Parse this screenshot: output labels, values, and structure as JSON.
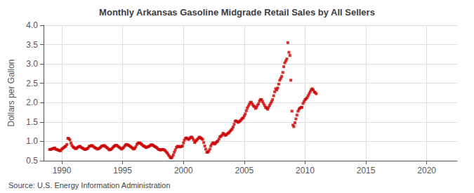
{
  "chart_data": {
    "type": "scatter",
    "title": "Monthly Arkansas Gasoline Midgrade Retail Sales by All Sellers",
    "ylabel": "Dollars per Gallon",
    "annotations": [
      "Source: U.S. Energy Information Administration"
    ],
    "color": "#cc0000",
    "marker": "square",
    "grid": true,
    "xlim": [
      1988.5,
      2022.5
    ],
    "ylim": [
      0.5,
      4.0
    ],
    "xticks": [
      1990,
      1995,
      2000,
      2005,
      2010,
      2015,
      2020
    ],
    "yticks": [
      0.5,
      {
        "value": 1.0,
        "label": "1.0"
      },
      1.5,
      {
        "value": 2.0,
        "label": "2.0"
      },
      2.5,
      {
        "value": 3.0,
        "label": "3.0"
      },
      3.5,
      {
        "value": 4.0,
        "label": "4.0"
      }
    ],
    "x": [
      1989.0,
      1989.08,
      1989.17,
      1989.25,
      1989.33,
      1989.42,
      1989.5,
      1989.58,
      1989.67,
      1989.75,
      1989.83,
      1989.92,
      1990.0,
      1990.08,
      1990.17,
      1990.25,
      1990.33,
      1990.42,
      1990.5,
      1990.58,
      1990.67,
      1990.75,
      1990.83,
      1990.92,
      1991.0,
      1991.08,
      1991.17,
      1991.25,
      1991.33,
      1991.42,
      1991.5,
      1991.58,
      1991.67,
      1991.75,
      1991.83,
      1991.92,
      1992.0,
      1992.08,
      1992.17,
      1992.25,
      1992.33,
      1992.42,
      1992.5,
      1992.58,
      1992.67,
      1992.75,
      1992.83,
      1992.92,
      1993.0,
      1993.08,
      1993.17,
      1993.25,
      1993.33,
      1993.42,
      1993.5,
      1993.58,
      1993.67,
      1993.75,
      1993.83,
      1993.92,
      1994.0,
      1994.08,
      1994.17,
      1994.25,
      1994.33,
      1994.42,
      1994.5,
      1994.58,
      1994.67,
      1994.75,
      1994.83,
      1994.92,
      1995.0,
      1995.08,
      1995.17,
      1995.25,
      1995.33,
      1995.42,
      1995.5,
      1995.58,
      1995.67,
      1995.75,
      1995.83,
      1995.92,
      1996.0,
      1996.08,
      1996.17,
      1996.25,
      1996.33,
      1996.42,
      1996.5,
      1996.58,
      1996.67,
      1996.75,
      1996.83,
      1996.92,
      1997.0,
      1997.08,
      1997.17,
      1997.25,
      1997.33,
      1997.42,
      1997.5,
      1997.58,
      1997.67,
      1997.75,
      1997.83,
      1997.92,
      1998.0,
      1998.08,
      1998.17,
      1998.25,
      1998.33,
      1998.42,
      1998.5,
      1998.58,
      1998.67,
      1998.75,
      1998.83,
      1998.92,
      1999.0,
      1999.08,
      1999.17,
      1999.25,
      1999.33,
      1999.42,
      1999.5,
      1999.58,
      1999.67,
      1999.75,
      1999.83,
      1999.92,
      2000.0,
      2000.08,
      2000.17,
      2000.25,
      2000.33,
      2000.42,
      2000.5,
      2000.58,
      2000.67,
      2000.75,
      2000.83,
      2000.92,
      2001.0,
      2001.08,
      2001.17,
      2001.25,
      2001.33,
      2001.42,
      2001.5,
      2001.58,
      2001.67,
      2001.75,
      2001.83,
      2001.92,
      2002.0,
      2002.08,
      2002.17,
      2002.25,
      2002.33,
      2002.42,
      2002.5,
      2002.58,
      2002.67,
      2002.75,
      2002.83,
      2002.92,
      2003.0,
      2003.08,
      2003.17,
      2003.25,
      2003.33,
      2003.42,
      2003.5,
      2003.58,
      2003.67,
      2003.75,
      2003.83,
      2003.92,
      2004.0,
      2004.08,
      2004.17,
      2004.25,
      2004.33,
      2004.42,
      2004.5,
      2004.58,
      2004.67,
      2004.75,
      2004.83,
      2004.92,
      2005.0,
      2005.08,
      2005.17,
      2005.25,
      2005.33,
      2005.42,
      2005.5,
      2005.58,
      2005.67,
      2005.75,
      2005.83,
      2005.92,
      2006.0,
      2006.08,
      2006.17,
      2006.25,
      2006.33,
      2006.42,
      2006.5,
      2006.58,
      2006.67,
      2006.75,
      2006.83,
      2006.92,
      2007.0,
      2007.08,
      2007.17,
      2007.25,
      2007.33,
      2007.42,
      2007.5,
      2007.58,
      2007.67,
      2007.75,
      2007.83,
      2007.92,
      2008.0,
      2008.08,
      2008.17,
      2008.25,
      2008.33,
      2008.42,
      2008.5,
      2008.58,
      2008.67,
      2008.75,
      2008.83,
      2008.92,
      2009.0,
      2009.08,
      2009.17,
      2009.25,
      2009.33,
      2009.42,
      2009.5,
      2009.58,
      2009.67,
      2009.75,
      2009.83,
      2009.92,
      2010.0,
      2010.08,
      2010.17,
      2010.25,
      2010.33,
      2010.42,
      2010.5,
      2010.58,
      2010.67,
      2010.75,
      2010.83,
      2010.92
    ],
    "values": [
      0.79,
      0.79,
      0.8,
      0.81,
      0.82,
      0.83,
      0.8,
      0.79,
      0.78,
      0.77,
      0.76,
      0.76,
      0.8,
      0.82,
      0.84,
      0.86,
      0.88,
      0.92,
      1.08,
      1.07,
      1.04,
      0.96,
      0.9,
      0.86,
      0.84,
      0.82,
      0.81,
      0.83,
      0.85,
      0.87,
      0.87,
      0.85,
      0.83,
      0.82,
      0.8,
      0.79,
      0.8,
      0.81,
      0.83,
      0.87,
      0.88,
      0.89,
      0.89,
      0.87,
      0.85,
      0.83,
      0.82,
      0.8,
      0.81,
      0.82,
      0.84,
      0.87,
      0.88,
      0.89,
      0.89,
      0.87,
      0.85,
      0.83,
      0.8,
      0.78,
      0.79,
      0.8,
      0.83,
      0.86,
      0.88,
      0.9,
      0.9,
      0.88,
      0.86,
      0.84,
      0.82,
      0.8,
      0.82,
      0.84,
      0.88,
      0.91,
      0.92,
      0.91,
      0.9,
      0.88,
      0.86,
      0.84,
      0.82,
      0.8,
      0.82,
      0.86,
      0.92,
      0.95,
      0.96,
      0.96,
      0.94,
      0.92,
      0.89,
      0.88,
      0.86,
      0.84,
      0.85,
      0.86,
      0.87,
      0.89,
      0.91,
      0.91,
      0.9,
      0.88,
      0.86,
      0.85,
      0.83,
      0.8,
      0.79,
      0.78,
      0.78,
      0.79,
      0.79,
      0.78,
      0.76,
      0.73,
      0.7,
      0.66,
      0.62,
      0.58,
      0.57,
      0.6,
      0.65,
      0.72,
      0.78,
      0.84,
      0.87,
      0.87,
      0.86,
      0.86,
      0.87,
      0.88,
      0.96,
      1.03,
      1.08,
      1.09,
      1.07,
      1.05,
      1.07,
      1.1,
      1.11,
      1.09,
      1.04,
      0.97,
      1.0,
      1.03,
      1.06,
      1.09,
      1.11,
      1.09,
      1.07,
      1.05,
      0.97,
      0.88,
      0.8,
      0.72,
      0.72,
      0.75,
      0.8,
      0.88,
      0.93,
      0.96,
      0.96,
      0.93,
      0.96,
      0.99,
      1.01,
      1.06,
      1.12,
      1.13,
      1.16,
      1.21,
      1.19,
      1.16,
      1.16,
      1.19,
      1.21,
      1.23,
      1.26,
      1.29,
      1.32,
      1.37,
      1.44,
      1.52,
      1.53,
      1.51,
      1.49,
      1.51,
      1.53,
      1.56,
      1.59,
      1.61,
      1.66,
      1.71,
      1.79,
      1.86,
      1.91,
      1.96,
      2.01,
      2.01,
      1.96,
      1.92,
      1.9,
      1.85,
      1.88,
      1.93,
      1.97,
      2.04,
      2.08,
      2.08,
      2.03,
      1.98,
      1.93,
      1.88,
      1.86,
      1.83,
      1.88,
      1.93,
      1.98,
      2.03,
      2.08,
      2.18,
      2.28,
      2.36,
      2.33,
      2.38,
      2.48,
      2.58,
      2.63,
      2.68,
      2.78,
      2.93,
      3.03,
      3.08,
      3.13,
      3.55,
      3.3,
      3.22,
      2.58,
      1.78,
      1.42,
      1.38,
      1.48,
      1.58,
      1.68,
      1.78,
      1.83,
      1.86,
      1.88,
      1.88,
      1.98,
      2.03,
      2.08,
      2.1,
      2.13,
      2.18,
      2.23,
      2.28,
      2.33,
      2.36,
      2.33,
      2.28,
      2.26,
      2.23
    ]
  }
}
